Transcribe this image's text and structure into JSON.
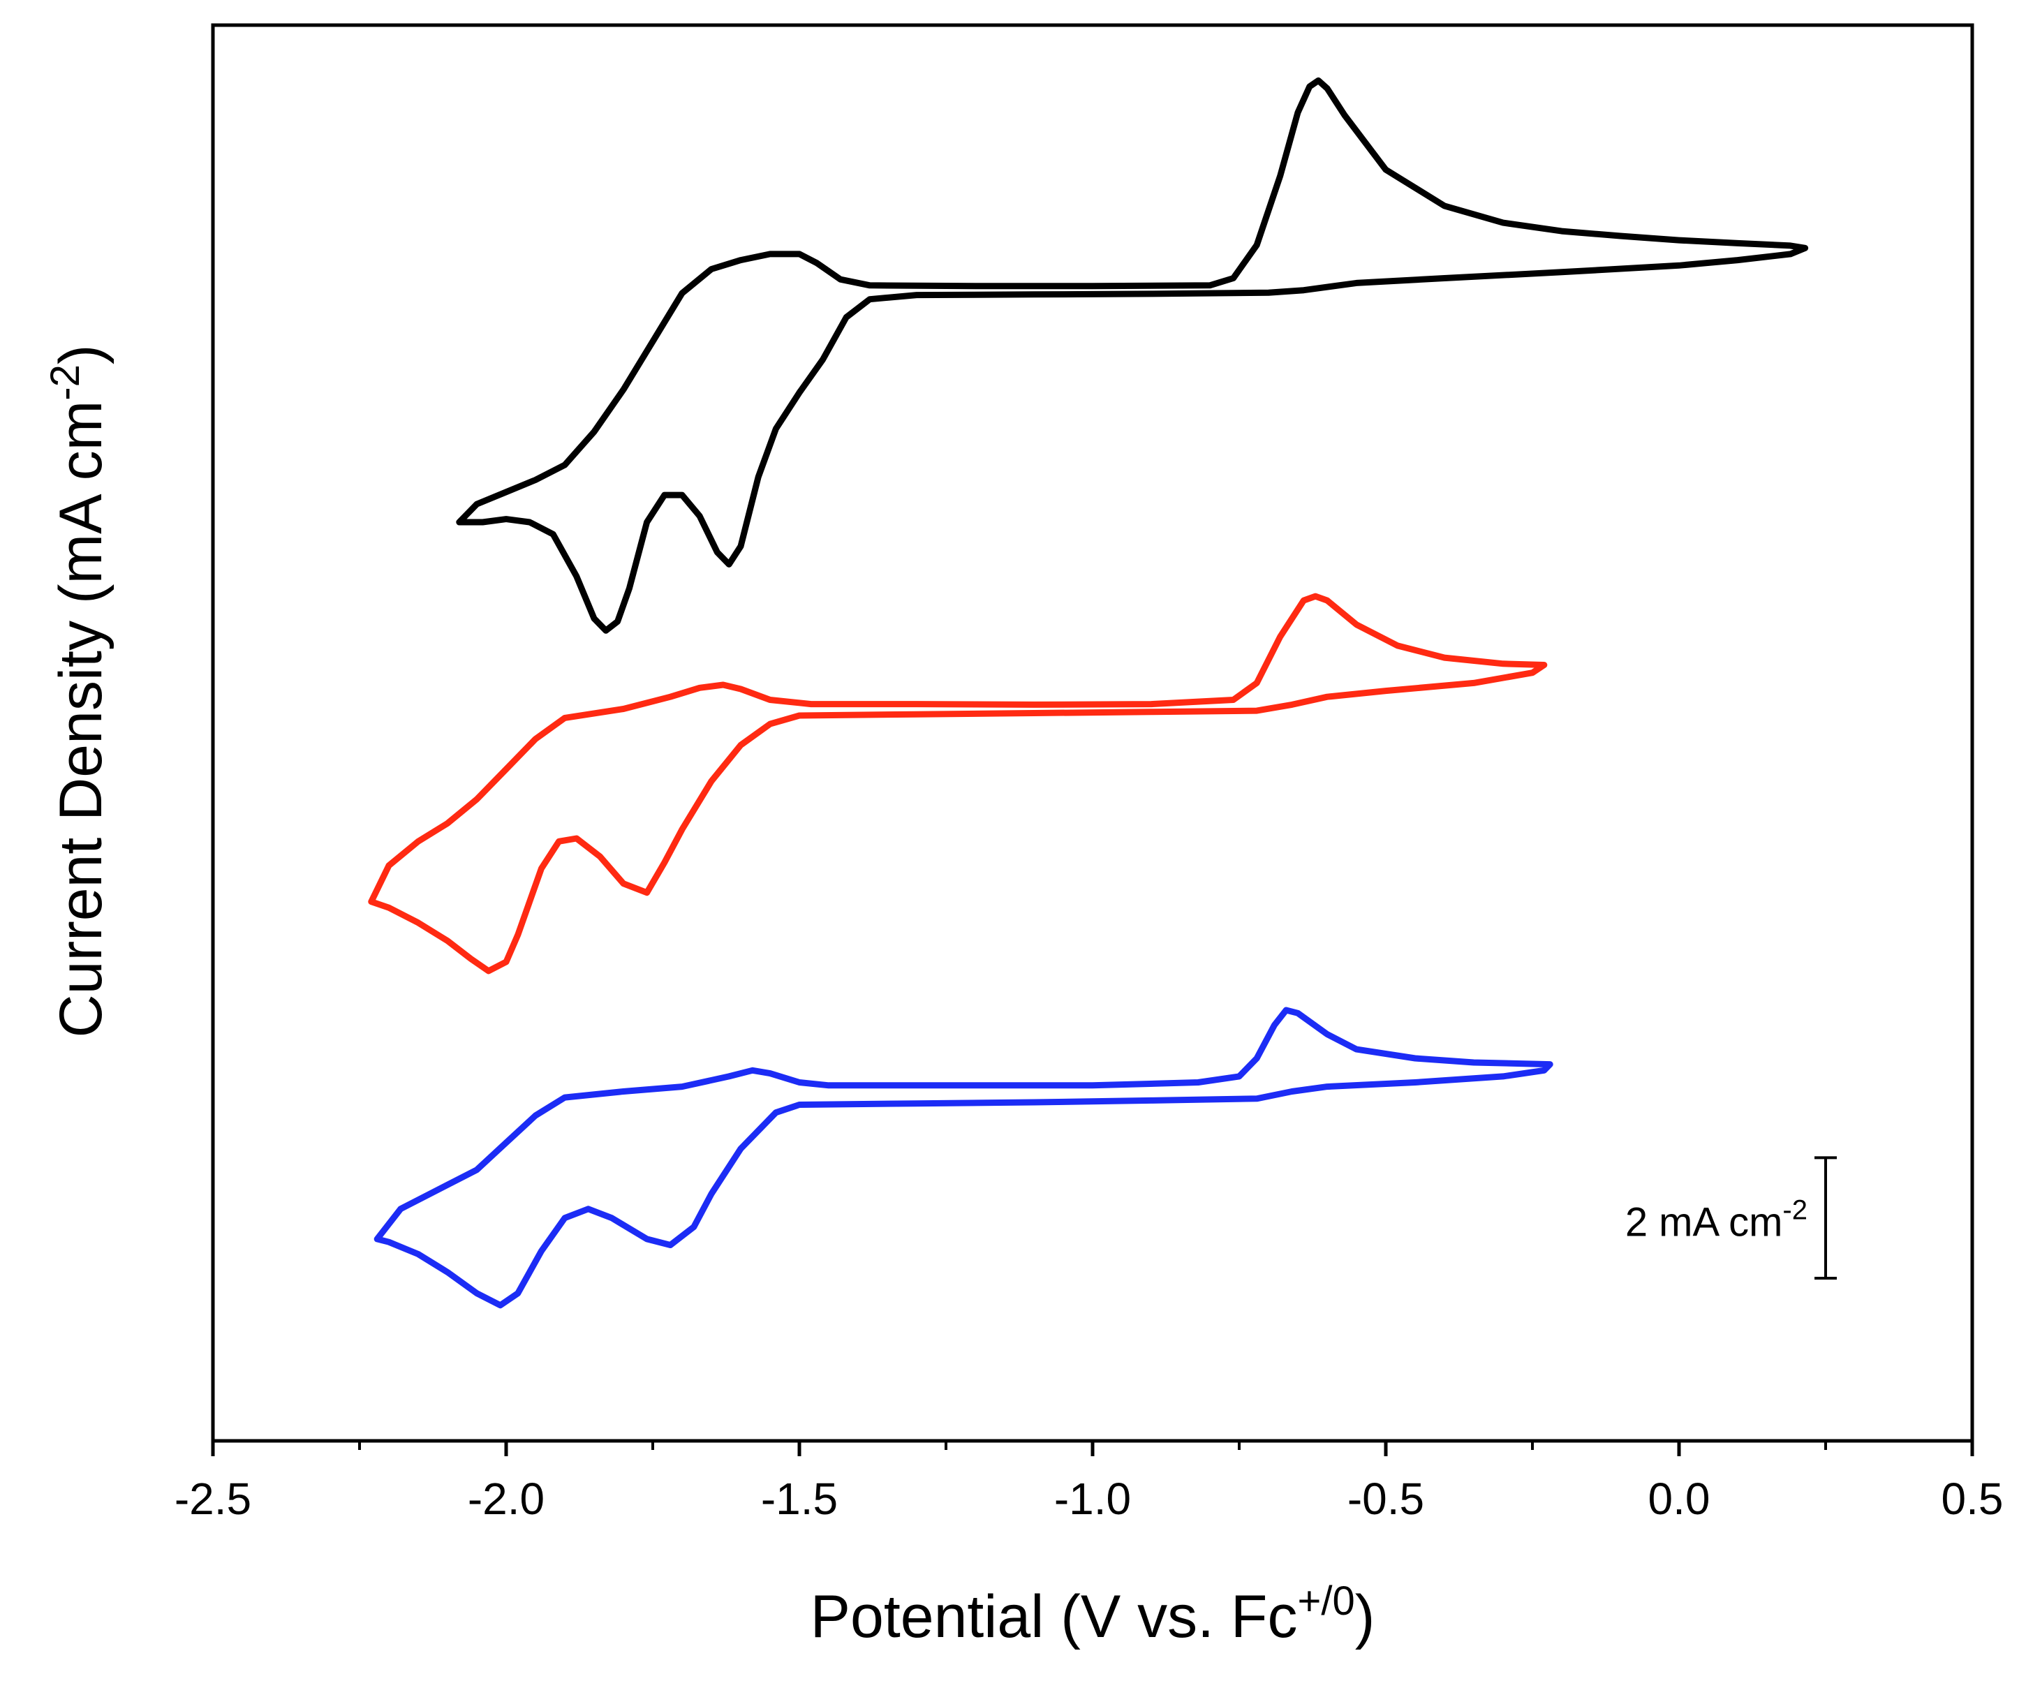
{
  "chart_data": {
    "type": "line",
    "title": "",
    "xlabel": "Potential (V vs. Fc",
    "xlabel_sup": "+/0",
    "xlabel_end": ")",
    "ylabel": "Current Density (mA cm",
    "ylabel_sup": "-2",
    "ylabel_end": ")",
    "xlim": [
      -2.5,
      0.5
    ],
    "ylim": [
      -17.0,
      6.5
    ],
    "xticks": [
      -2.5,
      -2.0,
      -1.5,
      -1.0,
      -0.5,
      0.0,
      0.5
    ],
    "xtick_labels": [
      "-2.5",
      "-2.0",
      "-1.5",
      "-1.0",
      "-0.5",
      "0.0",
      "0.5"
    ],
    "minor_xticks": [
      -2.25,
      -1.75,
      -1.25,
      -0.75,
      -0.25,
      0.25
    ],
    "y_axis_ticks": "none",
    "grid": false,
    "scale_bar": {
      "label": "2 mA cm",
      "label_sup": "-2",
      "value": 2,
      "x": 0.25,
      "y_bottom": -14.3
    },
    "series": [
      {
        "name": "black",
        "color": "#000000",
        "points": [
          [
            -2.08,
            -1.75
          ],
          [
            -2.05,
            -1.45
          ],
          [
            -2.0,
            -1.25
          ],
          [
            -1.95,
            -1.05
          ],
          [
            -1.9,
            -0.8
          ],
          [
            -1.85,
            -0.25
          ],
          [
            -1.8,
            0.45
          ],
          [
            -1.75,
            1.25
          ],
          [
            -1.7,
            2.05
          ],
          [
            -1.65,
            2.45
          ],
          [
            -1.6,
            2.6
          ],
          [
            -1.55,
            2.7
          ],
          [
            -1.5,
            2.7
          ],
          [
            -1.47,
            2.55
          ],
          [
            -1.43,
            2.28
          ],
          [
            -1.38,
            2.18
          ],
          [
            -1.2,
            2.17
          ],
          [
            -1.0,
            2.17
          ],
          [
            -0.8,
            2.18
          ],
          [
            -0.76,
            2.3
          ],
          [
            -0.72,
            2.85
          ],
          [
            -0.68,
            4.0
          ],
          [
            -0.65,
            5.05
          ],
          [
            -0.63,
            5.48
          ],
          [
            -0.615,
            5.58
          ],
          [
            -0.6,
            5.45
          ],
          [
            -0.57,
            5.0
          ],
          [
            -0.5,
            4.1
          ],
          [
            -0.4,
            3.5
          ],
          [
            -0.3,
            3.22
          ],
          [
            -0.2,
            3.08
          ],
          [
            -0.1,
            3.0
          ],
          [
            0.0,
            2.93
          ],
          [
            0.1,
            2.88
          ],
          [
            0.19,
            2.84
          ],
          [
            0.215,
            2.8
          ],
          [
            0.19,
            2.7
          ],
          [
            0.1,
            2.6
          ],
          [
            0.0,
            2.51
          ],
          [
            -0.2,
            2.4
          ],
          [
            -0.4,
            2.3
          ],
          [
            -0.55,
            2.22
          ],
          [
            -0.64,
            2.1
          ],
          [
            -0.7,
            2.06
          ],
          [
            -0.9,
            2.04
          ],
          [
            -1.1,
            2.03
          ],
          [
            -1.3,
            2.02
          ],
          [
            -1.38,
            1.95
          ],
          [
            -1.42,
            1.65
          ],
          [
            -1.46,
            0.95
          ],
          [
            -1.5,
            0.4
          ],
          [
            -1.54,
            -0.2
          ],
          [
            -1.57,
            -1.0
          ],
          [
            -1.6,
            -2.15
          ],
          [
            -1.62,
            -2.45
          ],
          [
            -1.64,
            -2.25
          ],
          [
            -1.67,
            -1.65
          ],
          [
            -1.7,
            -1.3
          ],
          [
            -1.73,
            -1.3
          ],
          [
            -1.76,
            -1.75
          ],
          [
            -1.79,
            -2.85
          ],
          [
            -1.81,
            -3.4
          ],
          [
            -1.83,
            -3.55
          ],
          [
            -1.85,
            -3.35
          ],
          [
            -1.88,
            -2.65
          ],
          [
            -1.92,
            -1.95
          ],
          [
            -1.96,
            -1.75
          ],
          [
            -2.0,
            -1.7
          ],
          [
            -2.04,
            -1.75
          ],
          [
            -2.08,
            -1.75
          ]
        ]
      },
      {
        "name": "red",
        "color": "#ff2a12",
        "points": [
          [
            -2.23,
            -8.05
          ],
          [
            -2.2,
            -7.45
          ],
          [
            -2.15,
            -7.05
          ],
          [
            -2.1,
            -6.75
          ],
          [
            -2.05,
            -6.35
          ],
          [
            -2.0,
            -5.85
          ],
          [
            -1.95,
            -5.35
          ],
          [
            -1.9,
            -5.0
          ],
          [
            -1.8,
            -4.85
          ],
          [
            -1.72,
            -4.65
          ],
          [
            -1.67,
            -4.5
          ],
          [
            -1.63,
            -4.45
          ],
          [
            -1.6,
            -4.52
          ],
          [
            -1.55,
            -4.7
          ],
          [
            -1.48,
            -4.77
          ],
          [
            -1.3,
            -4.77
          ],
          [
            -1.1,
            -4.78
          ],
          [
            -0.9,
            -4.77
          ],
          [
            -0.76,
            -4.7
          ],
          [
            -0.72,
            -4.42
          ],
          [
            -0.68,
            -3.65
          ],
          [
            -0.64,
            -3.05
          ],
          [
            -0.62,
            -2.98
          ],
          [
            -0.6,
            -3.05
          ],
          [
            -0.55,
            -3.45
          ],
          [
            -0.48,
            -3.8
          ],
          [
            -0.4,
            -4.0
          ],
          [
            -0.3,
            -4.1
          ],
          [
            -0.23,
            -4.12
          ],
          [
            -0.25,
            -4.25
          ],
          [
            -0.35,
            -4.42
          ],
          [
            -0.5,
            -4.55
          ],
          [
            -0.6,
            -4.65
          ],
          [
            -0.66,
            -4.78
          ],
          [
            -0.72,
            -4.88
          ],
          [
            -0.9,
            -4.9
          ],
          [
            -1.1,
            -4.92
          ],
          [
            -1.3,
            -4.94
          ],
          [
            -1.5,
            -4.96
          ],
          [
            -1.55,
            -5.1
          ],
          [
            -1.6,
            -5.45
          ],
          [
            -1.65,
            -6.05
          ],
          [
            -1.7,
            -6.85
          ],
          [
            -1.73,
            -7.4
          ],
          [
            -1.76,
            -7.9
          ],
          [
            -1.8,
            -7.75
          ],
          [
            -1.84,
            -7.3
          ],
          [
            -1.88,
            -7.0
          ],
          [
            -1.91,
            -7.05
          ],
          [
            -1.94,
            -7.5
          ],
          [
            -1.98,
            -8.6
          ],
          [
            -2.0,
            -9.05
          ],
          [
            -2.03,
            -9.2
          ],
          [
            -2.06,
            -9.0
          ],
          [
            -2.1,
            -8.7
          ],
          [
            -2.15,
            -8.4
          ],
          [
            -2.2,
            -8.15
          ],
          [
            -2.23,
            -8.05
          ]
        ]
      },
      {
        "name": "blue",
        "color": "#1c2cf5",
        "points": [
          [
            -2.22,
            -13.65
          ],
          [
            -2.18,
            -13.15
          ],
          [
            -2.12,
            -12.85
          ],
          [
            -2.05,
            -12.5
          ],
          [
            -2.0,
            -12.05
          ],
          [
            -1.95,
            -11.6
          ],
          [
            -1.9,
            -11.3
          ],
          [
            -1.8,
            -11.2
          ],
          [
            -1.7,
            -11.12
          ],
          [
            -1.62,
            -10.95
          ],
          [
            -1.58,
            -10.85
          ],
          [
            -1.55,
            -10.9
          ],
          [
            -1.5,
            -11.05
          ],
          [
            -1.45,
            -11.1
          ],
          [
            -1.2,
            -11.1
          ],
          [
            -1.0,
            -11.1
          ],
          [
            -0.82,
            -11.05
          ],
          [
            -0.75,
            -10.95
          ],
          [
            -0.72,
            -10.65
          ],
          [
            -0.69,
            -10.1
          ],
          [
            -0.67,
            -9.85
          ],
          [
            -0.65,
            -9.9
          ],
          [
            -0.6,
            -10.25
          ],
          [
            -0.55,
            -10.5
          ],
          [
            -0.45,
            -10.65
          ],
          [
            -0.35,
            -10.72
          ],
          [
            -0.22,
            -10.75
          ],
          [
            -0.23,
            -10.85
          ],
          [
            -0.3,
            -10.95
          ],
          [
            -0.45,
            -11.05
          ],
          [
            -0.6,
            -11.12
          ],
          [
            -0.66,
            -11.2
          ],
          [
            -0.72,
            -11.32
          ],
          [
            -0.9,
            -11.35
          ],
          [
            -1.1,
            -11.38
          ],
          [
            -1.3,
            -11.4
          ],
          [
            -1.5,
            -11.42
          ],
          [
            -1.54,
            -11.55
          ],
          [
            -1.6,
            -12.15
          ],
          [
            -1.65,
            -12.9
          ],
          [
            -1.68,
            -13.45
          ],
          [
            -1.72,
            -13.75
          ],
          [
            -1.76,
            -13.65
          ],
          [
            -1.82,
            -13.3
          ],
          [
            -1.86,
            -13.15
          ],
          [
            -1.9,
            -13.3
          ],
          [
            -1.94,
            -13.85
          ],
          [
            -1.98,
            -14.55
          ],
          [
            -2.01,
            -14.75
          ],
          [
            -2.05,
            -14.55
          ],
          [
            -2.1,
            -14.2
          ],
          [
            -2.15,
            -13.9
          ],
          [
            -2.2,
            -13.7
          ],
          [
            -2.22,
            -13.65
          ]
        ]
      }
    ]
  }
}
